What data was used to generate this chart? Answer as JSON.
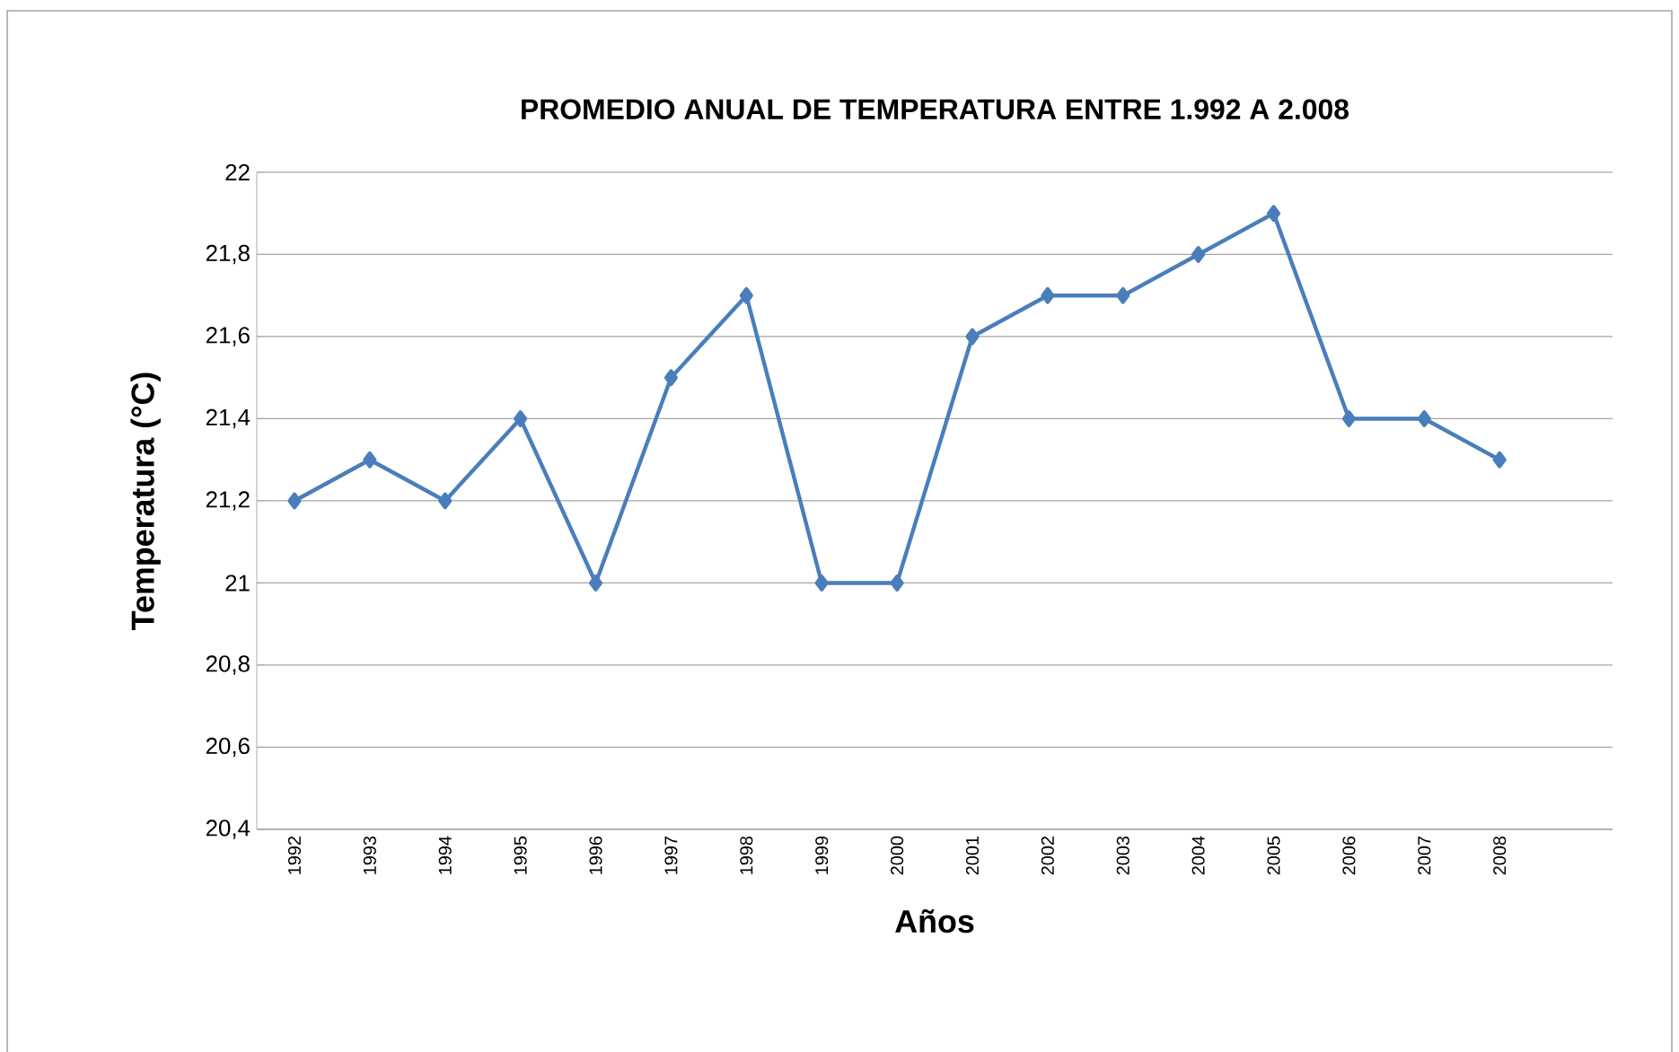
{
  "chart_data": {
    "type": "line",
    "title": "PROMEDIO ANUAL DE TEMPERATURA ENTRE 1.992 A 2.008",
    "xlabel": "Años",
    "ylabel": "Temperatura (°C)",
    "categories": [
      "1992",
      "1993",
      "1994",
      "1995",
      "1996",
      "1997",
      "1998",
      "1999",
      "2000",
      "2001",
      "2002",
      "2003",
      "2004",
      "2005",
      "2006",
      "2007",
      "2008",
      null
    ],
    "series": [
      {
        "color": "#4a7ebb",
        "values": [
          21.2,
          21.3,
          21.2,
          21.4,
          21.0,
          21.5,
          21.7,
          21.0,
          21.0,
          21.6,
          21.7,
          21.7,
          21.8,
          21.9,
          21.4,
          21.4,
          21.3,
          null
        ]
      }
    ],
    "ylim": [
      20.4,
      22
    ],
    "yticks": [
      {
        "value": 20.4,
        "label": "20,4"
      },
      {
        "value": 20.6,
        "label": "20,6"
      },
      {
        "value": 20.8,
        "label": "20,8"
      },
      {
        "value": 21,
        "label": "21"
      },
      {
        "value": 21.2,
        "label": "21,2"
      },
      {
        "value": 21.4,
        "label": "21,4"
      },
      {
        "value": 21.6,
        "label": "21,6"
      },
      {
        "value": 21.8,
        "label": "21,8"
      },
      {
        "value": 22,
        "label": "22"
      }
    ],
    "grid": "y",
    "marker": "diamond",
    "line_style": "solid"
  }
}
